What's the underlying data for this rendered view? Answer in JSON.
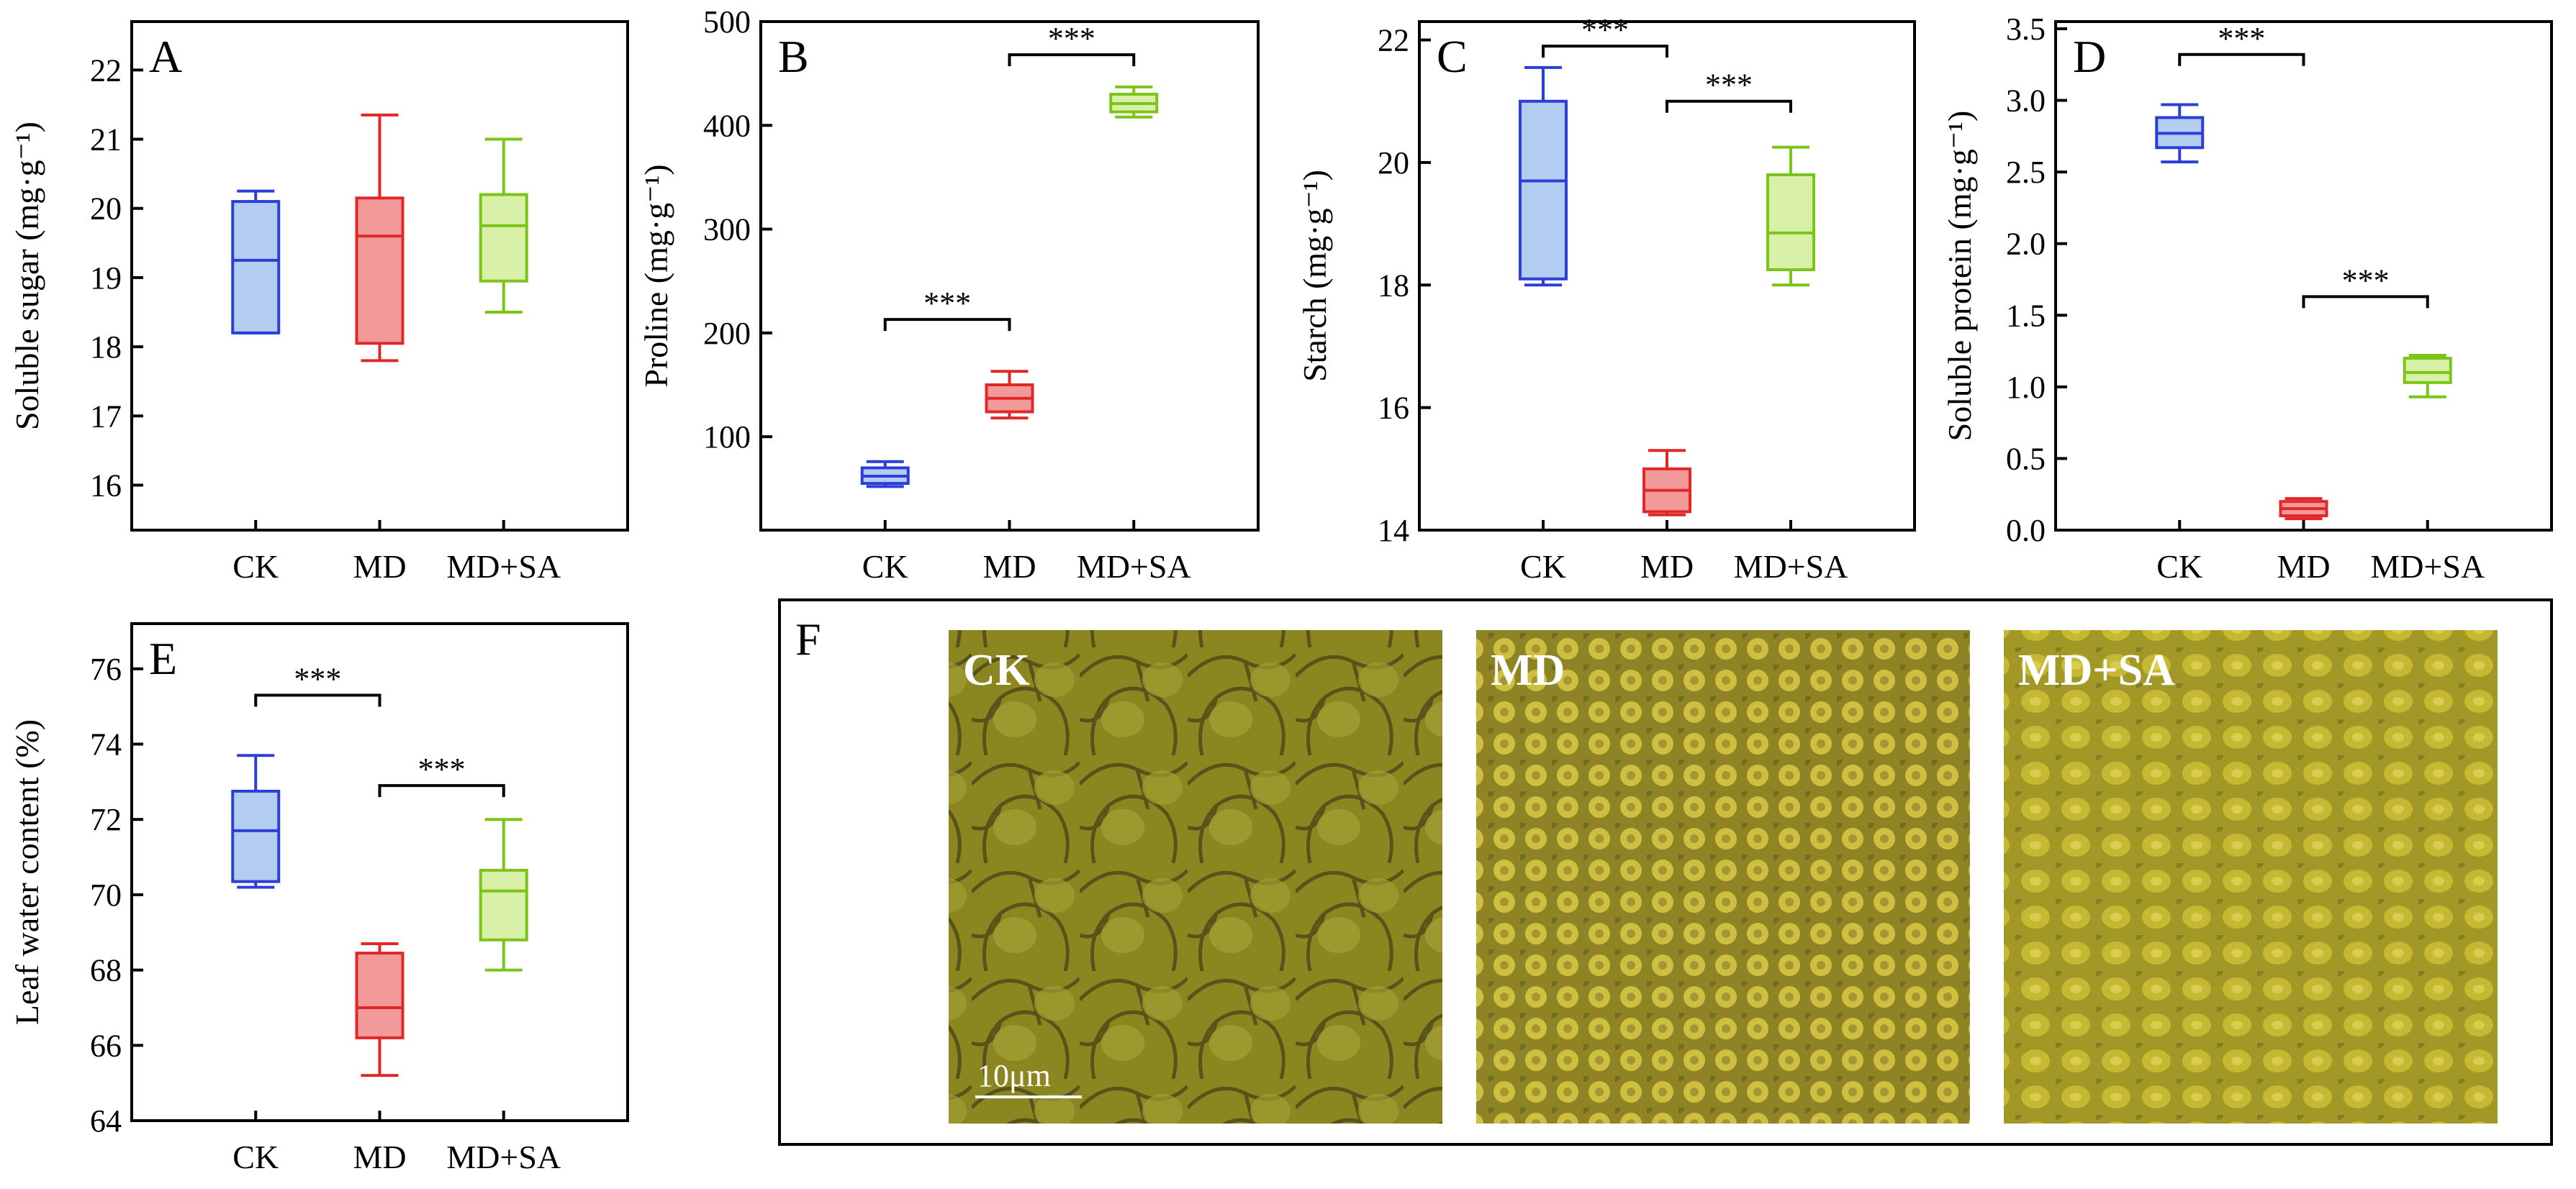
{
  "colors": {
    "CK": {
      "stroke": "#2b3fd8",
      "fill": "#b3cdf0"
    },
    "MD": {
      "stroke": "#e02828",
      "fill": "#f29a9a"
    },
    "MD+SA": {
      "stroke": "#7bc41a",
      "fill": "#d8f0a8"
    }
  },
  "chart_data": [
    {
      "panel": "A",
      "type": "box",
      "ylabel": "Soluble sugar (mg·g⁻¹)",
      "categories": [
        "CK",
        "MD",
        "MD+SA"
      ],
      "ylim": [
        15.35,
        22.7
      ],
      "yticks": [
        16,
        17,
        18,
        19,
        20,
        21,
        22
      ],
      "boxes": [
        {
          "min": 18.2,
          "q1": 18.2,
          "median": 19.25,
          "q3": 20.1,
          "max": 20.25
        },
        {
          "min": 17.8,
          "q1": 18.05,
          "median": 19.6,
          "q3": 20.15,
          "max": 21.35
        },
        {
          "min": 18.5,
          "q1": 18.95,
          "median": 19.75,
          "q3": 20.2,
          "max": 21.0
        }
      ],
      "significance": []
    },
    {
      "panel": "B",
      "type": "box",
      "ylabel": "Proline (mg·g⁻¹)",
      "categories": [
        "CK",
        "MD",
        "MD+SA"
      ],
      "ylim": [
        10,
        500
      ],
      "yticks": [
        100,
        200,
        300,
        400,
        500
      ],
      "boxes": [
        {
          "min": 52,
          "q1": 55,
          "median": 62,
          "q3": 70,
          "max": 76
        },
        {
          "min": 118,
          "q1": 124,
          "median": 137,
          "q3": 150,
          "max": 163
        },
        {
          "min": 408,
          "q1": 413,
          "median": 421,
          "q3": 430,
          "max": 437
        }
      ],
      "significance": [
        {
          "from": 0,
          "to": 1,
          "level": 213,
          "label": "***"
        },
        {
          "from": 1,
          "to": 2,
          "level": 468,
          "label": "***"
        }
      ]
    },
    {
      "panel": "C",
      "type": "box",
      "ylabel": "Starch (mg·g⁻¹)",
      "categories": [
        "CK",
        "MD",
        "MD+SA"
      ],
      "ylim": [
        14,
        22.3
      ],
      "yticks": [
        14,
        16,
        18,
        20,
        22
      ],
      "boxes": [
        {
          "min": 18.0,
          "q1": 18.1,
          "median": 19.7,
          "q3": 21.0,
          "max": 21.55
        },
        {
          "min": 14.25,
          "q1": 14.3,
          "median": 14.65,
          "q3": 15.0,
          "max": 15.3
        },
        {
          "min": 18.0,
          "q1": 18.25,
          "median": 18.85,
          "q3": 19.8,
          "max": 20.25
        }
      ],
      "significance": [
        {
          "from": 0,
          "to": 1,
          "level": 21.9,
          "label": "***"
        },
        {
          "from": 1,
          "to": 2,
          "level": 21.0,
          "label": "***"
        }
      ]
    },
    {
      "panel": "D",
      "type": "box",
      "ylabel": "Soluble protein (mg·g⁻¹)",
      "categories": [
        "CK",
        "MD",
        "MD+SA"
      ],
      "ylim": [
        0,
        3.55
      ],
      "yticks": [
        0.0,
        0.5,
        1.0,
        1.5,
        2.0,
        2.5,
        3.0,
        3.5
      ],
      "tick_decimals": 1,
      "boxes": [
        {
          "min": 2.57,
          "q1": 2.67,
          "median": 2.77,
          "q3": 2.88,
          "max": 2.97
        },
        {
          "min": 0.08,
          "q1": 0.1,
          "median": 0.15,
          "q3": 0.2,
          "max": 0.22
        },
        {
          "min": 0.93,
          "q1": 1.03,
          "median": 1.1,
          "q3": 1.2,
          "max": 1.22
        }
      ],
      "significance": [
        {
          "from": 0,
          "to": 1,
          "level": 3.32,
          "label": "***"
        },
        {
          "from": 1,
          "to": 2,
          "level": 1.63,
          "label": "***"
        }
      ]
    },
    {
      "panel": "E",
      "type": "box",
      "ylabel": "Leaf water content (%)",
      "categories": [
        "CK",
        "MD",
        "MD+SA"
      ],
      "ylim": [
        64,
        77.2
      ],
      "yticks": [
        64,
        66,
        68,
        70,
        72,
        74,
        76
      ],
      "boxes": [
        {
          "min": 70.2,
          "q1": 70.35,
          "median": 71.7,
          "q3": 72.75,
          "max": 73.7
        },
        {
          "min": 65.2,
          "q1": 66.2,
          "median": 67.0,
          "q3": 68.45,
          "max": 68.7
        },
        {
          "min": 68.0,
          "q1": 68.8,
          "median": 70.1,
          "q3": 70.65,
          "max": 72.0
        }
      ],
      "significance": [
        {
          "from": 0,
          "to": 1,
          "level": 75.3,
          "label": "***"
        },
        {
          "from": 1,
          "to": 2,
          "level": 72.9,
          "label": "***"
        }
      ]
    }
  ],
  "micrographs": {
    "panel": "F",
    "images": [
      {
        "label": "CK",
        "tone": "#8f8a22"
      },
      {
        "label": "MD",
        "tone": "#a8a028"
      },
      {
        "label": "MD+SA",
        "tone": "#b4aa24"
      }
    ],
    "scale_bar": "10μm"
  }
}
